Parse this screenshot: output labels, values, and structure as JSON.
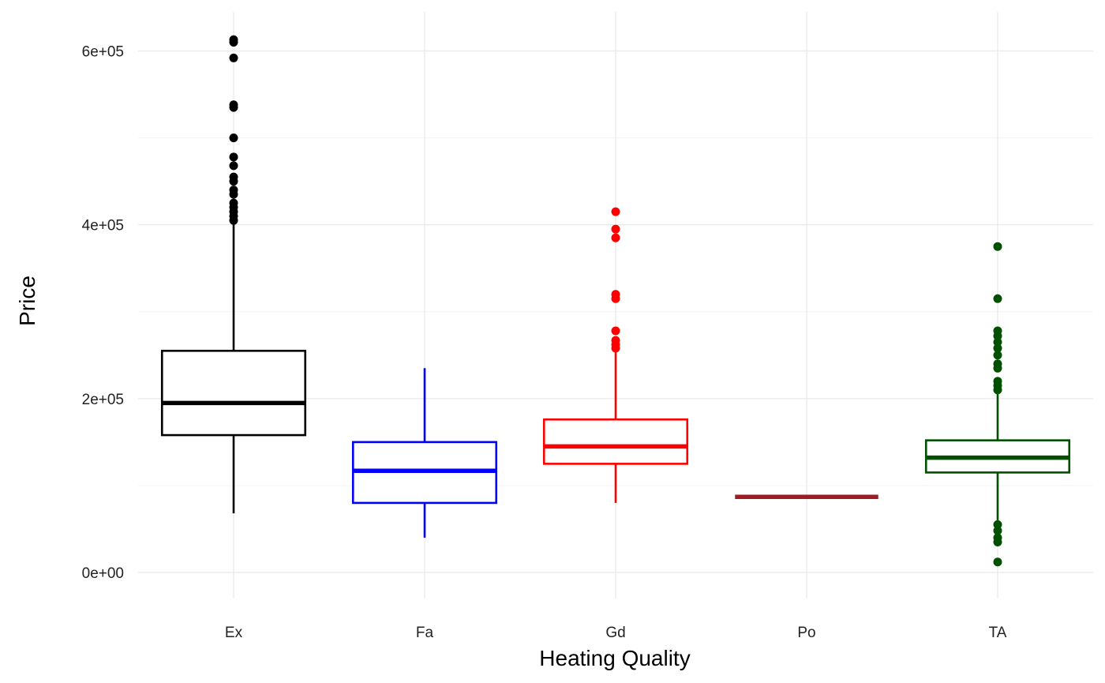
{
  "chart_data": {
    "type": "boxplot",
    "xlabel": "Heating Quality",
    "ylabel": "Price",
    "ylim": [
      -30000,
      645000
    ],
    "y_ticks": [
      0,
      200000,
      400000,
      600000
    ],
    "y_tick_labels": [
      "0e+00",
      "2e+05",
      "4e+05",
      "6e+05"
    ],
    "grid": true,
    "legend": "none",
    "categories": [
      "Ex",
      "Fa",
      "Gd",
      "Po",
      "TA"
    ],
    "series": [
      {
        "category": "Ex",
        "color": "#000000",
        "whisker_low": 68000,
        "q1": 158000,
        "median": 195000,
        "q3": 255000,
        "whisker_high": 404000,
        "outliers": [
          405000,
          410000,
          415000,
          420000,
          425000,
          435000,
          440000,
          450000,
          455000,
          468000,
          478000,
          500000,
          535000,
          538000,
          592000,
          610000,
          613000
        ]
      },
      {
        "category": "Fa",
        "color": "#0000ff",
        "whisker_low": 40000,
        "q1": 80000,
        "median": 117000,
        "q3": 150000,
        "whisker_high": 235000,
        "outliers": []
      },
      {
        "category": "Gd",
        "color": "#ff0000",
        "whisker_low": 80000,
        "q1": 125000,
        "median": 145000,
        "q3": 176000,
        "whisker_high": 253000,
        "outliers": [
          258000,
          262000,
          267000,
          278000,
          315000,
          320000,
          385000,
          395000,
          415000
        ]
      },
      {
        "category": "Po",
        "color": "#a01c24",
        "whisker_low": 87000,
        "q1": 87000,
        "median": 87000,
        "q3": 87000,
        "whisker_high": 87000,
        "outliers": []
      },
      {
        "category": "TA",
        "color": "#005000",
        "whisker_low": 60000,
        "q1": 115000,
        "median": 132000,
        "q3": 152000,
        "whisker_high": 208000,
        "outliers": [
          12000,
          35000,
          40000,
          48000,
          55000,
          210000,
          215000,
          220000,
          235000,
          240000,
          250000,
          258000,
          265000,
          272000,
          278000,
          315000,
          375000
        ]
      }
    ]
  }
}
